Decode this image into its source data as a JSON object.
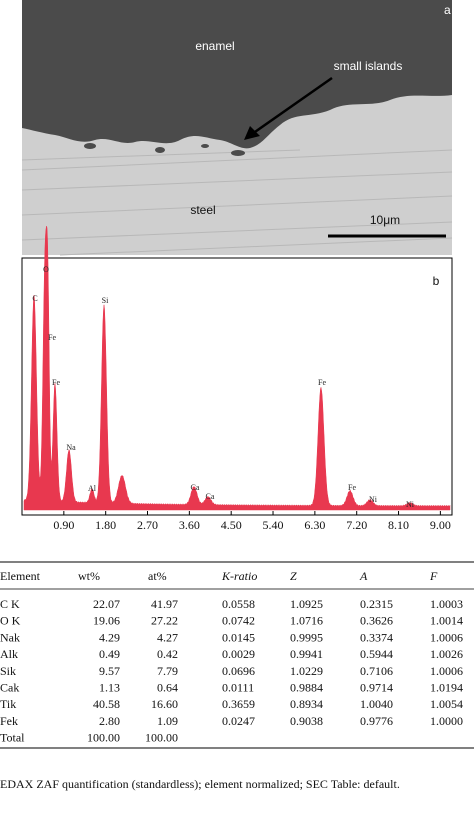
{
  "figure_a": {
    "panel": "a",
    "enamel": "enamel",
    "annotation": "small islands",
    "steel": "steel",
    "scale": "10μm"
  },
  "chart_data": {
    "type": "spectrum",
    "panel": "b",
    "color": "#e8384f",
    "peak_labels": [
      "C",
      "O",
      "Fe",
      "Fe",
      "Na",
      "Al",
      "Si",
      "Ca",
      "Ca",
      "Fe",
      "Fe",
      "Ni",
      "Ni"
    ],
    "xlim": [
      0,
      9.25
    ],
    "xticks": [
      {
        "value": 0.9,
        "label": "0.90"
      },
      {
        "value": 1.8,
        "label": "1.80"
      },
      {
        "value": 2.7,
        "label": "2.70"
      },
      {
        "value": 3.6,
        "label": "3.60"
      },
      {
        "value": 4.5,
        "label": "4.50"
      },
      {
        "value": 5.4,
        "label": "5.40"
      },
      {
        "value": 6.3,
        "label": "6.30"
      },
      {
        "value": 7.2,
        "label": "7.20"
      },
      {
        "value": 8.1,
        "label": "8.10"
      },
      {
        "value": 9.0,
        "label": "9.00"
      }
    ]
  },
  "table": {
    "header": [
      "Element",
      "wt%",
      "at%",
      "K-ratio",
      "Z",
      "A",
      "F"
    ],
    "rows": [
      [
        "C K",
        "22.07",
        "41.97",
        "0.0558",
        "1.0925",
        "0.2315",
        "1.0003"
      ],
      [
        "O K",
        "19.06",
        "27.22",
        "0.0742",
        "1.0716",
        "0.3626",
        "1.0014"
      ],
      [
        "Nak",
        "4.29",
        "4.27",
        "0.0145",
        "0.9995",
        "0.3374",
        "1.0006"
      ],
      [
        "Alk",
        "0.49",
        "0.42",
        "0.0029",
        "0.9941",
        "0.5944",
        "1.0026"
      ],
      [
        "Sik",
        "9.57",
        "7.79",
        "0.0696",
        "1.0229",
        "0.7106",
        "1.0006"
      ],
      [
        "Cak",
        "1.13",
        "0.64",
        "0.0111",
        "0.9884",
        "0.9714",
        "1.0194"
      ],
      [
        "Tik",
        "40.58",
        "16.60",
        "0.3659",
        "0.8934",
        "1.0040",
        "1.0054"
      ],
      [
        "Fek",
        "2.80",
        "1.09",
        "0.0247",
        "0.9038",
        "0.9776",
        "1.0000"
      ],
      [
        "Total",
        "100.00",
        "100.00"
      ]
    ],
    "caption": "EDAX ZAF quantification (standardless); element normalized; SEC Table: default."
  }
}
